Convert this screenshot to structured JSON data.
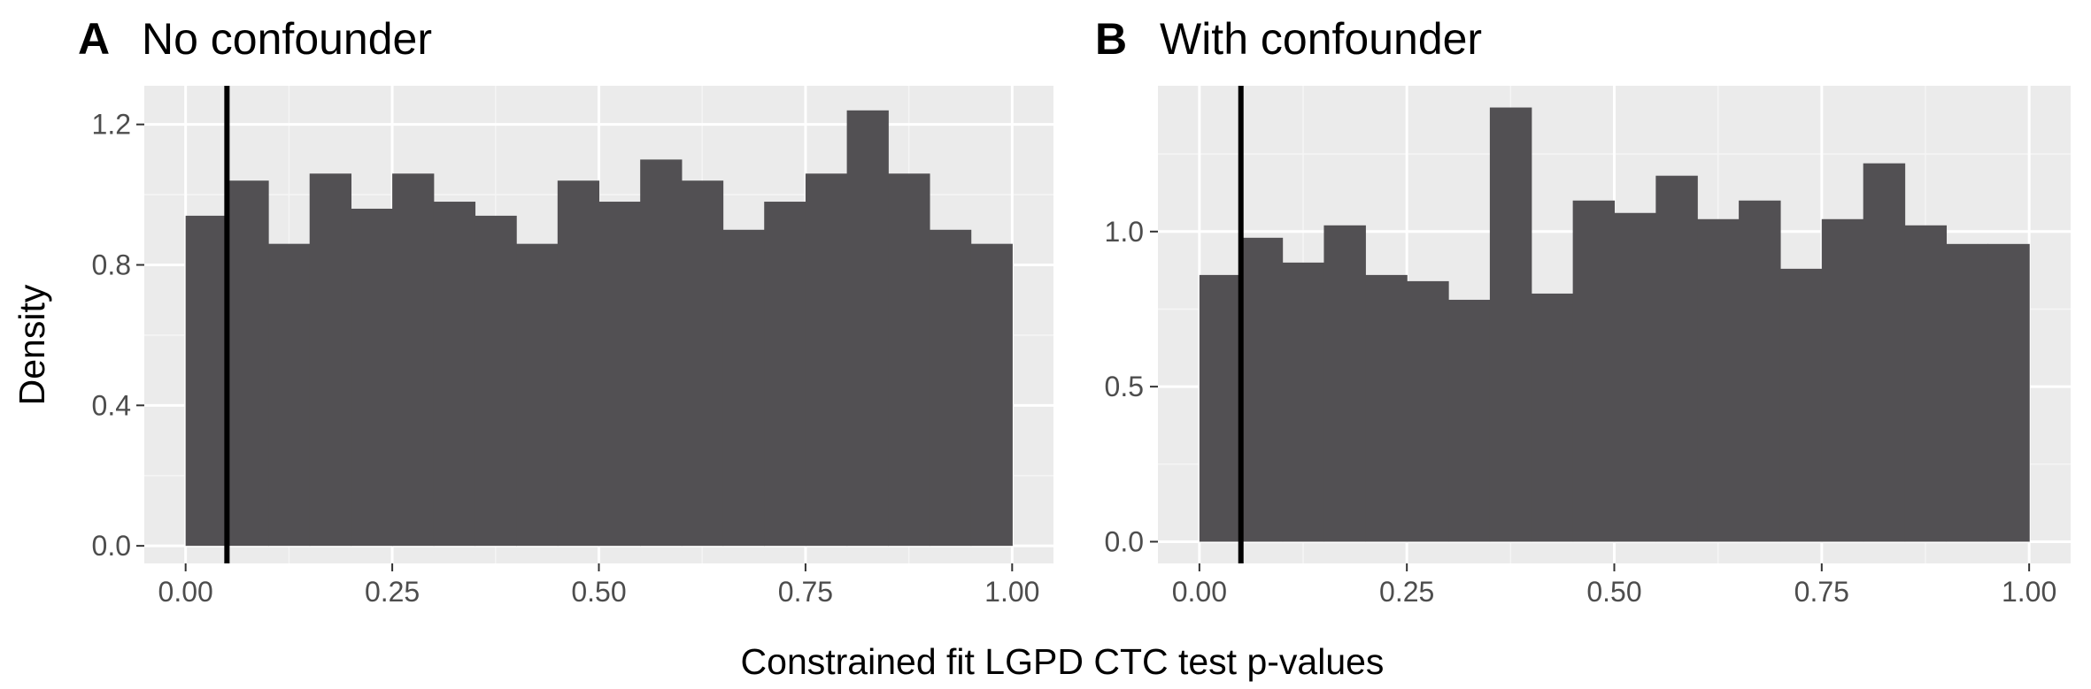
{
  "xlabel": "Constrained fit LGPD CTC test p-values",
  "ylabel": "Density",
  "colors": {
    "panel_background": "#EBEBEB",
    "grid_major": "#FFFFFF",
    "grid_minor": "#F5F5F5",
    "bar_fill": "#525053",
    "reference_line": "#000000",
    "tick_label": "#4D4D4D"
  },
  "chart_data": [
    {
      "type": "bar",
      "tag": "A",
      "title": "No confounder",
      "bin_width": 0.05,
      "bin_starts": [
        0.0,
        0.05,
        0.1,
        0.15,
        0.2,
        0.25,
        0.3,
        0.35,
        0.4,
        0.45,
        0.5,
        0.55,
        0.6,
        0.65,
        0.7,
        0.75,
        0.8,
        0.85,
        0.9,
        0.95
      ],
      "values": [
        0.94,
        1.04,
        0.86,
        1.06,
        0.96,
        1.06,
        0.98,
        0.94,
        0.86,
        1.04,
        0.98,
        1.1,
        1.04,
        0.9,
        0.98,
        1.06,
        1.24,
        1.06,
        0.9,
        0.86
      ],
      "reference_line_x": 0.05,
      "xlim": [
        -0.05,
        1.05
      ],
      "ylim": [
        -0.05,
        1.31
      ],
      "x_ticks": [
        0.0,
        0.25,
        0.5,
        0.75,
        1.0
      ],
      "x_tick_labels": [
        "0.00",
        "0.25",
        "0.50",
        "0.75",
        "1.00"
      ],
      "y_ticks": [
        0.0,
        0.4,
        0.8,
        1.2
      ],
      "y_tick_labels": [
        "0.0",
        "0.4",
        "0.8",
        "1.2"
      ],
      "grid": true
    },
    {
      "type": "bar",
      "tag": "B",
      "title": "With confounder",
      "bin_width": 0.05,
      "bin_starts": [
        0.0,
        0.05,
        0.1,
        0.15,
        0.2,
        0.25,
        0.3,
        0.35,
        0.4,
        0.45,
        0.5,
        0.55,
        0.6,
        0.65,
        0.7,
        0.75,
        0.8,
        0.85,
        0.9,
        0.95
      ],
      "values": [
        0.86,
        0.98,
        0.9,
        1.02,
        0.86,
        0.84,
        0.78,
        1.4,
        0.8,
        1.1,
        1.06,
        1.18,
        1.04,
        1.1,
        0.88,
        1.04,
        1.22,
        1.02,
        0.96,
        0.96
      ],
      "reference_line_x": 0.05,
      "xlim": [
        -0.05,
        1.05
      ],
      "ylim": [
        -0.07,
        1.47
      ],
      "x_ticks": [
        0.0,
        0.25,
        0.5,
        0.75,
        1.0
      ],
      "x_tick_labels": [
        "0.00",
        "0.25",
        "0.50",
        "0.75",
        "1.00"
      ],
      "y_ticks": [
        0.0,
        0.5,
        1.0
      ],
      "y_tick_labels": [
        "0.0",
        "0.5",
        "1.0"
      ],
      "grid": true
    }
  ]
}
